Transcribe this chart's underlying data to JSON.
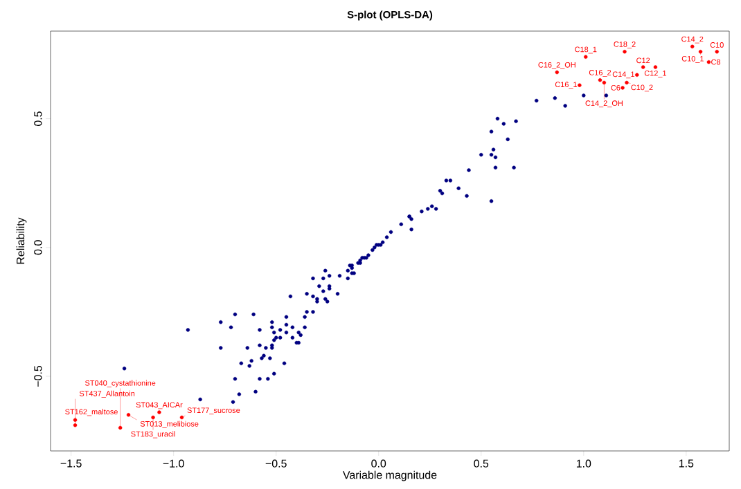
{
  "chart_data": {
    "type": "scatter",
    "title": "S-plot (OPLS-DA)",
    "xlabel": "Variable magnitude",
    "ylabel": "Reliability",
    "xlim": [
      -1.6,
      1.71
    ],
    "ylim": [
      -0.79,
      0.84
    ],
    "xticks": [
      {
        "value": -1.5,
        "label": "−1.5"
      },
      {
        "value": -1,
        "label": "−1.0"
      },
      {
        "value": -0.5,
        "label": "−0.5"
      },
      {
        "value": 0,
        "label": "0.0"
      },
      {
        "value": 0.5,
        "label": "0.5"
      },
      {
        "value": 1,
        "label": "1.0"
      },
      {
        "value": 1.5,
        "label": "1.5"
      }
    ],
    "yticks": [
      {
        "value": -0.5,
        "label": "−0.5"
      },
      {
        "value": 0,
        "label": "0.0"
      },
      {
        "value": 0.5,
        "label": "0.5"
      }
    ],
    "marker": "circle",
    "grid": false,
    "series": [
      {
        "color": "#000080",
        "x": [
          0.58,
          0.61,
          0.67,
          0.55,
          0.63,
          0.56,
          0.5,
          0.55,
          0.57,
          0.57,
          0.66,
          0.44,
          0.33,
          0.35,
          0.39,
          0.43,
          0.3,
          0.31,
          0.55,
          0.21,
          0.24,
          0.26,
          0.28,
          0.15,
          0.15,
          0.16,
          0.16,
          0.11,
          0.06,
          0.04,
          0.02,
          0.01,
          0.0,
          -0.01,
          -0.02,
          -0.03,
          -0.05,
          -0.06,
          -0.07,
          -0.08,
          -0.09,
          -0.09,
          -0.1,
          -0.13,
          -0.14,
          -0.13,
          -0.15,
          -0.13,
          -0.12,
          -0.15,
          -0.19,
          -0.24,
          -0.26,
          -0.27,
          -0.32,
          -0.29,
          -0.24,
          -0.24,
          -0.27,
          -0.2,
          -0.43,
          -0.35,
          -0.32,
          -0.3,
          -0.3,
          -0.26,
          -0.25,
          -0.35,
          -0.32,
          -0.36,
          -0.45,
          -0.52,
          -0.7,
          -0.61,
          -0.77,
          -0.72,
          -0.93,
          -0.58,
          -0.52,
          -0.45,
          -0.42,
          -0.36,
          -0.51,
          -0.48,
          -0.45,
          -0.39,
          -0.38,
          -0.42,
          -0.5,
          -0.51,
          -0.48,
          -0.39,
          -0.4,
          -0.52,
          -0.58,
          -0.55,
          -0.52,
          -0.64,
          -0.77,
          -0.56,
          -0.57,
          -0.53,
          -0.62,
          -0.67,
          -0.63,
          -0.46,
          -0.51,
          -0.54,
          -0.7,
          -0.58,
          -0.6,
          -0.68,
          -0.87,
          -0.71,
          -1.24,
          0.77,
          0.86,
          0.91,
          1.0,
          1.11
        ],
        "values": [
          0.5,
          0.48,
          0.49,
          0.45,
          0.42,
          0.38,
          0.36,
          0.36,
          0.35,
          0.31,
          0.31,
          0.3,
          0.26,
          0.26,
          0.23,
          0.2,
          0.22,
          0.21,
          0.18,
          0.14,
          0.15,
          0.16,
          0.15,
          0.12,
          0.12,
          0.11,
          0.07,
          0.09,
          0.06,
          0.04,
          0.02,
          0.01,
          0.01,
          0.01,
          0.0,
          -0.01,
          -0.03,
          -0.04,
          -0.04,
          -0.04,
          -0.05,
          -0.06,
          -0.06,
          -0.07,
          -0.07,
          -0.08,
          -0.09,
          -0.1,
          -0.1,
          -0.12,
          -0.11,
          -0.11,
          -0.09,
          -0.12,
          -0.12,
          -0.15,
          -0.15,
          -0.16,
          -0.17,
          -0.18,
          -0.19,
          -0.18,
          -0.19,
          -0.2,
          -0.21,
          -0.2,
          -0.21,
          -0.25,
          -0.25,
          -0.27,
          -0.27,
          -0.29,
          -0.26,
          -0.26,
          -0.29,
          -0.31,
          -0.32,
          -0.32,
          -0.31,
          -0.3,
          -0.31,
          -0.31,
          -0.33,
          -0.32,
          -0.33,
          -0.33,
          -0.34,
          -0.35,
          -0.35,
          -0.36,
          -0.35,
          -0.37,
          -0.37,
          -0.38,
          -0.38,
          -0.39,
          -0.39,
          -0.39,
          -0.39,
          -0.42,
          -0.43,
          -0.43,
          -0.44,
          -0.45,
          -0.46,
          -0.45,
          -0.49,
          -0.51,
          -0.51,
          -0.51,
          -0.56,
          -0.57,
          -0.59,
          -0.6,
          -0.47,
          0.57,
          0.58,
          0.55,
          0.59,
          0.59
        ]
      },
      {
        "color": "#ff0000",
        "x": [
          1.53,
          1.57,
          1.65,
          1.61,
          1.01,
          1.2,
          0.87,
          1.29,
          1.35,
          1.26,
          1.08,
          1.1,
          0.98,
          1.21,
          1.19,
          -1.48,
          -1.07,
          -1.22,
          -1.1,
          -0.96,
          -1.48,
          -1.26
        ],
        "values": [
          0.78,
          0.76,
          0.76,
          0.72,
          0.74,
          0.76,
          0.68,
          0.7,
          0.7,
          0.67,
          0.65,
          0.64,
          0.63,
          0.64,
          0.62,
          -0.67,
          -0.64,
          -0.65,
          -0.66,
          -0.66,
          -0.69,
          -0.7
        ]
      }
    ],
    "annotations": [
      {
        "text": "C14_2",
        "x": 1.53,
        "y": 0.78
      },
      {
        "text": "C10_1",
        "x": 1.57,
        "y": 0.76
      },
      {
        "text": "C10",
        "x": 1.65,
        "y": 0.76
      },
      {
        "text": "C8",
        "x": 1.61,
        "y": 0.72
      },
      {
        "text": "C18_1",
        "x": 1.01,
        "y": 0.74
      },
      {
        "text": "C18_2",
        "x": 1.2,
        "y": 0.76
      },
      {
        "text": "C16_2_OH",
        "x": 0.87,
        "y": 0.68
      },
      {
        "text": "C12",
        "x": 1.29,
        "y": 0.7
      },
      {
        "text": "C12_1",
        "x": 1.35,
        "y": 0.7
      },
      {
        "text": "C14_1",
        "x": 1.26,
        "y": 0.67
      },
      {
        "text": "C16_2",
        "x": 1.08,
        "y": 0.65
      },
      {
        "text": "C14_2_OH",
        "x": 1.1,
        "y": 0.64
      },
      {
        "text": "C16_1",
        "x": 0.98,
        "y": 0.63
      },
      {
        "text": "C10_2",
        "x": 1.21,
        "y": 0.64
      },
      {
        "text": "C6",
        "x": 1.19,
        "y": 0.62
      },
      {
        "text": "ST162_maltose",
        "x": -1.48,
        "y": -0.67
      },
      {
        "text": "ST043_AICAr",
        "x": -1.07,
        "y": -0.64
      },
      {
        "text": "ST013_melibiose",
        "x": -1.22,
        "y": -0.65
      },
      {
        "text": "ST183_uracil",
        "x": -1.1,
        "y": -0.66
      },
      {
        "text": "ST177_sucrose",
        "x": -0.96,
        "y": -0.66
      },
      {
        "text": "ST437_Allantoin",
        "x": -1.48,
        "y": -0.69
      },
      {
        "text": "ST040_cystathionine",
        "x": -1.26,
        "y": -0.7
      }
    ]
  }
}
